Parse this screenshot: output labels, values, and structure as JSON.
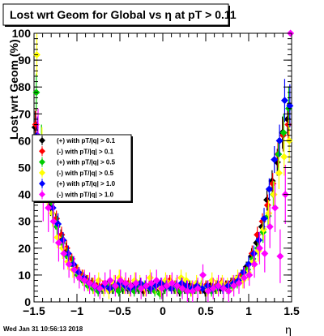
{
  "window": {
    "title": "Lost wrt Geom for Global vs  η at pT > 0.11",
    "timestamp": "Wed Jan 31 10:56:13 2018"
  },
  "chart_data": {
    "type": "scatter",
    "title": "Lost wrt Geom for Global vs  η at pT > 0.11",
    "xlabel": "η",
    "ylabel": "Lost wrt Geom (%)",
    "xlim": [
      -1.5,
      1.5
    ],
    "ylim": [
      0,
      100
    ],
    "x_ticks": [
      -1.5,
      -1,
      -0.5,
      0,
      0.5,
      1,
      1.5
    ],
    "x_tick_labels": [
      "−1.5",
      "−1",
      "−0.5",
      "0",
      "0.5",
      "1",
      "1.5"
    ],
    "y_ticks": [
      0,
      10,
      20,
      30,
      40,
      50,
      60,
      70,
      80,
      90,
      100
    ],
    "y_tick_labels": [
      "0",
      "10",
      "20",
      "30",
      "40",
      "50",
      "60",
      "70",
      "80",
      "90",
      "100"
    ],
    "grid": false,
    "legend_position": "middle-left",
    "series": [
      {
        "name": "(+) with pT/|q| > 0.1",
        "color": "#000000",
        "marker": "diamond",
        "x": [
          -1.47,
          -1.41,
          -1.35,
          -1.29,
          -1.23,
          -1.17,
          -1.11,
          -1.05,
          -0.99,
          -0.93,
          -0.87,
          -0.81,
          -0.75,
          -0.69,
          -0.63,
          -0.57,
          -0.51,
          -0.45,
          -0.39,
          -0.33,
          -0.27,
          -0.21,
          -0.15,
          -0.09,
          -0.03,
          0.03,
          0.09,
          0.15,
          0.21,
          0.27,
          0.33,
          0.39,
          0.45,
          0.51,
          0.57,
          0.63,
          0.69,
          0.75,
          0.81,
          0.87,
          0.93,
          0.99,
          1.05,
          1.11,
          1.17,
          1.23,
          1.29,
          1.35,
          1.41,
          1.47
        ],
        "y": [
          65,
          55,
          45,
          36,
          30,
          24,
          19,
          15,
          12,
          9,
          8,
          7,
          6,
          5,
          6,
          5,
          6,
          5,
          5,
          6,
          5,
          4,
          5,
          6,
          5,
          5,
          6,
          5,
          4,
          5,
          6,
          5,
          5,
          4,
          6,
          5,
          5,
          6,
          7,
          8,
          10,
          13,
          17,
          22,
          28,
          38,
          45,
          52,
          63,
          68
        ],
        "err": [
          6,
          5,
          4,
          4,
          3,
          3,
          3,
          2,
          2,
          2,
          2,
          2,
          2,
          2,
          2,
          2,
          2,
          2,
          2,
          2,
          2,
          2,
          2,
          2,
          2,
          2,
          2,
          2,
          2,
          2,
          2,
          2,
          2,
          2,
          2,
          2,
          2,
          2,
          2,
          2,
          2,
          2,
          3,
          3,
          3,
          4,
          4,
          5,
          6,
          6
        ]
      },
      {
        "name": "(-) with pT/|q| > 0.1",
        "color": "#ff0000",
        "marker": "diamond",
        "x": [
          -1.47,
          -1.41,
          -1.35,
          -1.29,
          -1.23,
          -1.17,
          -1.11,
          -1.05,
          -0.99,
          -0.93,
          -0.87,
          -0.81,
          -0.75,
          -0.69,
          -0.63,
          -0.57,
          -0.51,
          -0.45,
          -0.39,
          -0.33,
          -0.27,
          -0.21,
          -0.15,
          -0.09,
          -0.03,
          0.03,
          0.09,
          0.15,
          0.21,
          0.27,
          0.33,
          0.39,
          0.45,
          0.51,
          0.57,
          0.63,
          0.69,
          0.75,
          0.81,
          0.87,
          0.93,
          0.99,
          1.05,
          1.11,
          1.17,
          1.23,
          1.29,
          1.35,
          1.41,
          1.47
        ],
        "y": [
          66,
          56,
          46,
          38,
          31,
          25,
          20,
          16,
          12,
          10,
          8,
          7,
          6,
          6,
          5,
          6,
          5,
          6,
          7,
          5,
          6,
          5,
          6,
          5,
          6,
          7,
          8,
          6,
          5,
          6,
          5,
          6,
          5,
          6,
          5,
          6,
          7,
          6,
          7,
          8,
          10,
          12,
          18,
          25,
          30,
          36,
          44,
          55,
          62,
          66
        ],
        "err": [
          6,
          5,
          4,
          4,
          3,
          3,
          3,
          2,
          2,
          2,
          2,
          2,
          2,
          2,
          2,
          2,
          2,
          2,
          2,
          2,
          2,
          2,
          2,
          2,
          2,
          2,
          2,
          2,
          2,
          2,
          2,
          2,
          2,
          2,
          2,
          2,
          2,
          2,
          2,
          2,
          2,
          2,
          3,
          3,
          3,
          4,
          4,
          5,
          6,
          6
        ]
      },
      {
        "name": "(+) with pT/|q| > 0.5",
        "color": "#00cc00",
        "marker": "diamond",
        "x": [
          -1.47,
          -1.41,
          -1.35,
          -1.29,
          -1.23,
          -1.17,
          -1.11,
          -1.05,
          -0.99,
          -0.93,
          -0.87,
          -0.81,
          -0.75,
          -0.69,
          -0.63,
          -0.57,
          -0.51,
          -0.45,
          -0.39,
          -0.33,
          -0.27,
          -0.21,
          -0.15,
          -0.09,
          -0.03,
          0.03,
          0.09,
          0.15,
          0.21,
          0.27,
          0.33,
          0.39,
          0.45,
          0.51,
          0.57,
          0.63,
          0.69,
          0.75,
          0.81,
          0.87,
          0.93,
          0.99,
          1.05,
          1.11,
          1.17,
          1.23,
          1.29,
          1.35,
          1.41,
          1.47
        ],
        "y": [
          78,
          60,
          48,
          37,
          28,
          22,
          17,
          14,
          10,
          8,
          6,
          5,
          4,
          5,
          6,
          5,
          4,
          5,
          6,
          4,
          5,
          6,
          5,
          4,
          3,
          5,
          6,
          5,
          4,
          5,
          4,
          5,
          6,
          5,
          4,
          5,
          6,
          5,
          6,
          7,
          9,
          12,
          16,
          20,
          26,
          32,
          40,
          55,
          63,
          72
        ],
        "err": [
          7,
          6,
          5,
          4,
          4,
          3,
          3,
          3,
          2,
          2,
          2,
          2,
          2,
          2,
          2,
          2,
          2,
          2,
          2,
          2,
          2,
          2,
          2,
          2,
          2,
          2,
          2,
          2,
          2,
          2,
          2,
          2,
          2,
          2,
          2,
          2,
          2,
          2,
          2,
          2,
          2,
          3,
          3,
          3,
          4,
          4,
          5,
          6,
          7,
          8
        ]
      },
      {
        "name": "(-) with pT/|q| > 0.5",
        "color": "#ffff00",
        "marker": "diamond",
        "x": [
          -1.47,
          -1.41,
          -1.35,
          -1.29,
          -1.23,
          -1.17,
          -1.11,
          -1.05,
          -0.99,
          -0.93,
          -0.87,
          -0.81,
          -0.75,
          -0.69,
          -0.63,
          -0.57,
          -0.51,
          -0.45,
          -0.39,
          -0.33,
          -0.27,
          -0.21,
          -0.15,
          -0.09,
          -0.03,
          0.03,
          0.09,
          0.15,
          0.21,
          0.27,
          0.33,
          0.39,
          0.45,
          0.51,
          0.57,
          0.63,
          0.69,
          0.75,
          0.81,
          0.87,
          0.93,
          0.99,
          1.05,
          1.11,
          1.17,
          1.23,
          1.29,
          1.35,
          1.41,
          1.47
        ],
        "y": [
          92,
          58,
          42,
          33,
          24,
          20,
          15,
          12,
          11,
          9,
          7,
          6,
          8,
          5,
          4,
          7,
          9,
          6,
          5,
          8,
          7,
          5,
          9,
          6,
          5,
          8,
          7,
          6,
          9,
          8,
          5,
          7,
          6,
          5,
          8,
          6,
          7,
          6,
          7,
          9,
          8,
          11,
          15,
          19,
          27,
          33,
          40,
          48,
          54,
          60
        ],
        "err": [
          8,
          7,
          6,
          5,
          4,
          4,
          3,
          3,
          3,
          3,
          3,
          3,
          3,
          3,
          3,
          3,
          3,
          3,
          3,
          3,
          3,
          3,
          3,
          3,
          3,
          3,
          3,
          3,
          3,
          3,
          3,
          3,
          3,
          3,
          3,
          3,
          3,
          3,
          3,
          3,
          3,
          3,
          3,
          4,
          4,
          5,
          5,
          6,
          7,
          8
        ]
      },
      {
        "name": "(+) with pT/|q| > 1.0",
        "color": "#0000ff",
        "marker": "diamond",
        "x": [
          -1.47,
          -1.41,
          -1.35,
          -1.29,
          -1.23,
          -1.17,
          -1.11,
          -1.05,
          -0.99,
          -0.93,
          -0.87,
          -0.81,
          -0.75,
          -0.69,
          -0.63,
          -0.57,
          -0.51,
          -0.45,
          -0.39,
          -0.33,
          -0.27,
          -0.21,
          -0.15,
          -0.09,
          -0.03,
          0.03,
          0.09,
          0.15,
          0.21,
          0.27,
          0.33,
          0.39,
          0.45,
          0.51,
          0.57,
          0.63,
          0.69,
          0.75,
          0.81,
          0.87,
          0.93,
          0.99,
          1.05,
          1.11,
          1.17,
          1.23,
          1.29,
          1.35,
          1.41,
          1.47
        ],
        "y": [
          62,
          52,
          44,
          35,
          29,
          23,
          18,
          14,
          11,
          9,
          7,
          6,
          5,
          6,
          5,
          6,
          7,
          6,
          5,
          6,
          7,
          6,
          5,
          6,
          7,
          6,
          5,
          6,
          7,
          6,
          5,
          6,
          5,
          6,
          5,
          6,
          5,
          6,
          7,
          8,
          11,
          14,
          18,
          23,
          31,
          42,
          53,
          60,
          75,
          73
        ],
        "err": [
          7,
          6,
          5,
          4,
          4,
          3,
          3,
          3,
          2,
          2,
          2,
          2,
          2,
          2,
          2,
          2,
          2,
          2,
          2,
          2,
          2,
          2,
          2,
          2,
          2,
          2,
          2,
          2,
          2,
          2,
          2,
          2,
          2,
          2,
          2,
          2,
          2,
          2,
          2,
          2,
          2,
          3,
          3,
          3,
          4,
          4,
          5,
          6,
          8,
          8
        ]
      },
      {
        "name": "(-) with pT/|q| > 1.0",
        "color": "#ff00ff",
        "marker": "diamond",
        "x": [
          -1.47,
          -1.41,
          -1.35,
          -1.29,
          -1.23,
          -1.17,
          -1.11,
          -1.05,
          -0.99,
          -0.93,
          -0.87,
          -0.81,
          -0.75,
          -0.69,
          -0.63,
          -0.57,
          -0.51,
          -0.45,
          -0.39,
          -0.33,
          -0.27,
          -0.21,
          -0.15,
          -0.09,
          -0.03,
          0.03,
          0.09,
          0.15,
          0.21,
          0.27,
          0.33,
          0.39,
          0.45,
          0.51,
          0.57,
          0.63,
          0.69,
          0.75,
          0.81,
          0.87,
          0.93,
          0.99,
          1.05,
          1.11,
          1.17,
          1.23,
          1.29,
          1.35,
          1.41,
          1.47
        ],
        "y": [
          60,
          40,
          35,
          30,
          22,
          18,
          14,
          12,
          9,
          8,
          7,
          6,
          5,
          7,
          8,
          6,
          8,
          7,
          6,
          7,
          5,
          6,
          7,
          8,
          5,
          6,
          7,
          6,
          5,
          4,
          4,
          5,
          10,
          4,
          5,
          6,
          5,
          4,
          6,
          7,
          9,
          10,
          14,
          20,
          18,
          28,
          35,
          17,
          40,
          100
        ],
        "err": [
          12,
          10,
          9,
          8,
          7,
          6,
          5,
          5,
          4,
          4,
          4,
          4,
          4,
          4,
          4,
          4,
          4,
          4,
          4,
          4,
          4,
          4,
          4,
          4,
          4,
          4,
          4,
          4,
          4,
          4,
          4,
          4,
          4,
          4,
          4,
          4,
          4,
          4,
          4,
          4,
          4,
          4,
          5,
          6,
          7,
          8,
          9,
          10,
          11,
          0
        ]
      }
    ]
  }
}
